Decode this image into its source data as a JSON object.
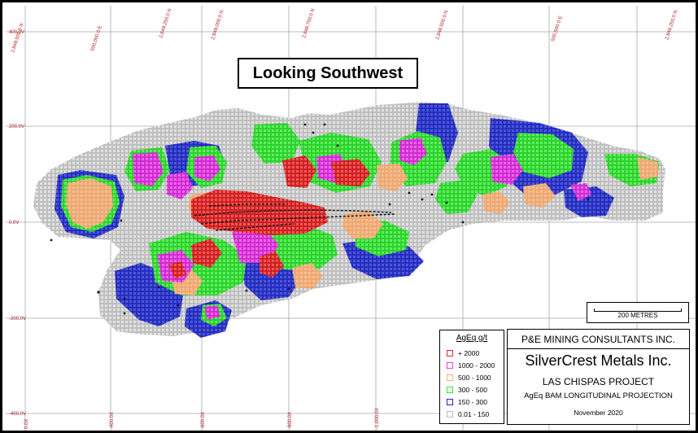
{
  "title": "Looking Southwest",
  "grid": {
    "eastings": [
      "2,849,500.0 N",
      "500,000.0 E",
      "2,849,250.0 N",
      "2,849,000.0 N",
      "2,848,750.0 N",
      "2,848,500.0 N",
      "500,500.0 E",
      "2,848,250.0 N"
    ],
    "elevations": [
      "400.0V",
      "200.0V",
      "0.0V",
      "-200.0V",
      "-400.0V"
    ],
    "bottom": [
      "0.0X",
      "-400.0X",
      "-600.0X",
      "-800.0X",
      "-1,000.0X"
    ]
  },
  "scale": {
    "label": "200 METRES"
  },
  "legend": {
    "title": "AgEq g/t",
    "items": [
      {
        "label": "+ 2000",
        "color": "#e8202a"
      },
      {
        "label": "1000 - 2000",
        "color": "#e83de8"
      },
      {
        "label": "500 - 1000",
        "color": "#f4b07a"
      },
      {
        "label": "300 - 500",
        "color": "#2ee82e"
      },
      {
        "label": "150 - 300",
        "color": "#1c28c8"
      },
      {
        "label": "0.01 - 150",
        "color": "#bcbcbc"
      }
    ]
  },
  "info": {
    "consultant": "P&E MINING CONSULTANTS INC.",
    "company": "SilverCrest Metals Inc.",
    "project": "LAS CHISPAS PROJECT",
    "description": "AgEq BAM LONGITUDINAL PROJECTION",
    "date": "November 2020"
  },
  "colors": {
    "grid_line": "#a0a8b0",
    "grid_label": "#b02020",
    "block_model_base": "#cfcfcf",
    "drill_trace": "#1a1a1a"
  }
}
